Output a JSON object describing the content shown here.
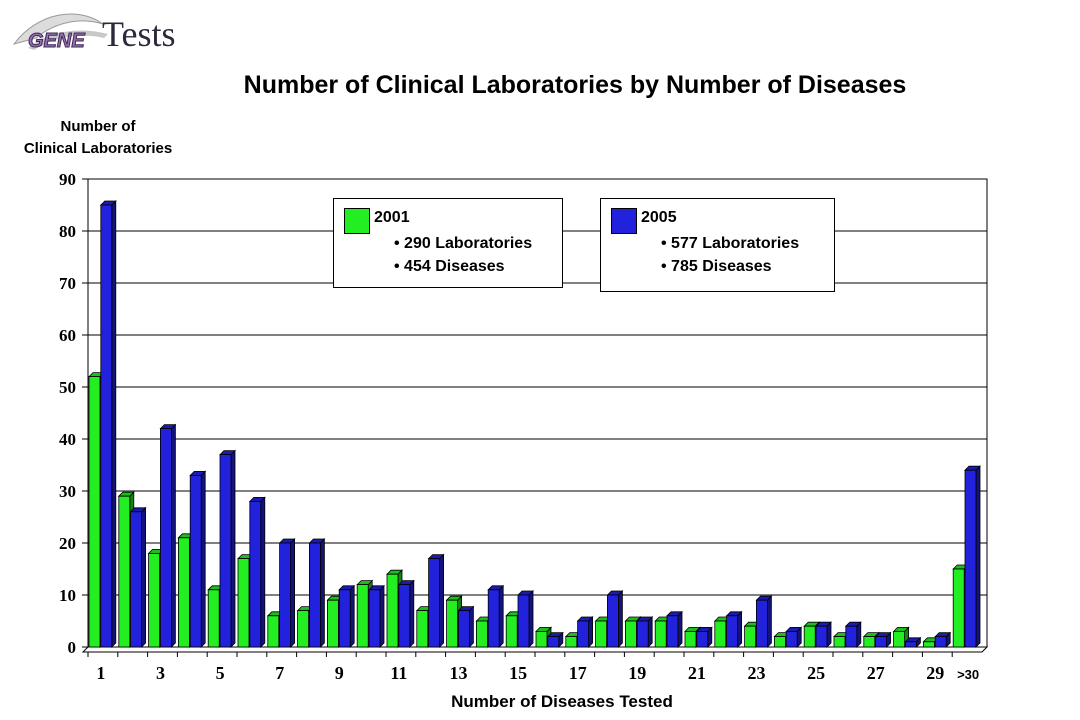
{
  "logo": {
    "prefix": "GENE",
    "suffix": "Tests"
  },
  "chart_data": {
    "type": "bar",
    "title": "Number of Clinical Laboratories by Number of Diseases",
    "ylabel_line1": "Number of",
    "ylabel_line2": "Clinical Laboratories",
    "xlabel": "Number of Diseases Tested",
    "ylim": [
      0,
      90
    ],
    "yticks": [
      0,
      10,
      20,
      30,
      40,
      50,
      60,
      70,
      80,
      90
    ],
    "grid": true,
    "categories": [
      "1",
      "2",
      "3",
      "4",
      "5",
      "6",
      "7",
      "8",
      "9",
      "10",
      "11",
      "12",
      "13",
      "14",
      "15",
      "16",
      "17",
      "18",
      "19",
      "20",
      "21",
      "22",
      "23",
      "24",
      "25",
      "26",
      "27",
      "28",
      "29",
      ">30"
    ],
    "tick_labels": [
      "1",
      "",
      "3",
      "",
      "5",
      "",
      "7",
      "",
      "9",
      "",
      "11",
      "",
      "13",
      "",
      "15",
      "",
      "17",
      "",
      "19",
      "",
      "21",
      "",
      "23",
      "",
      "25",
      "",
      "27",
      "",
      "29",
      ">30"
    ],
    "series": [
      {
        "name": "2001",
        "color": "#22ee22",
        "values": [
          52,
          29,
          18,
          21,
          11,
          17,
          6,
          7,
          9,
          12,
          14,
          7,
          9,
          5,
          6,
          3,
          2,
          5,
          5,
          5,
          3,
          5,
          4,
          2,
          4,
          2,
          2,
          3,
          1,
          15
        ]
      },
      {
        "name": "2005",
        "color": "#2222dd",
        "values": [
          85,
          26,
          42,
          33,
          37,
          28,
          20,
          20,
          11,
          11,
          12,
          17,
          7,
          11,
          10,
          2,
          5,
          10,
          5,
          6,
          3,
          6,
          9,
          3,
          4,
          4,
          2,
          1,
          2,
          34
        ]
      }
    ]
  },
  "legend": [
    {
      "year": "2001",
      "bullet1": "• 290 Laboratories",
      "bullet2": "• 454 Diseases",
      "color": "#22ee22"
    },
    {
      "year": "2005",
      "bullet1": "• 577 Laboratories",
      "bullet2": "• 785 Diseases",
      "color": "#2222dd"
    }
  ]
}
